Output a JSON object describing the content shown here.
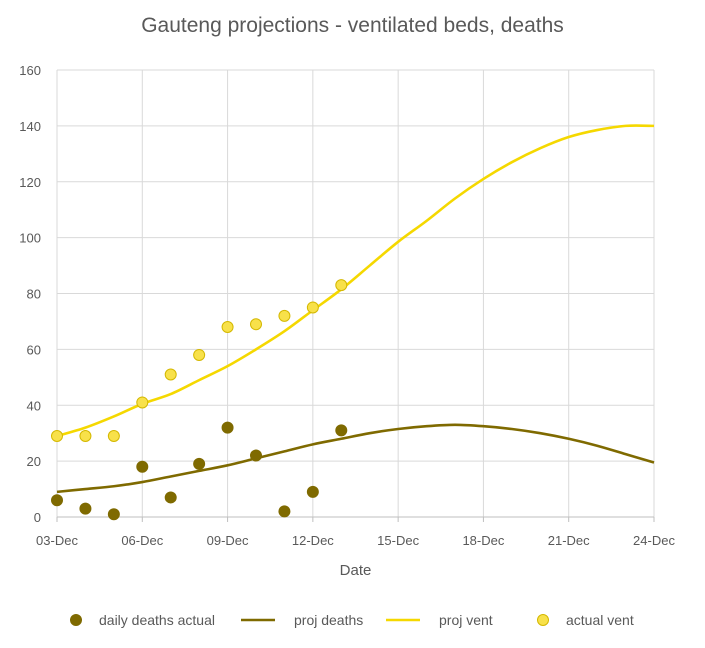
{
  "chart_data": {
    "type": "line",
    "title": "Gauteng projections - ventilated beds, deaths",
    "xlabel": "Date",
    "ylabel": "",
    "x_tick_labels": [
      "03-Dec",
      "06-Dec",
      "09-Dec",
      "12-Dec",
      "15-Dec",
      "18-Dec",
      "21-Dec",
      "24-Dec"
    ],
    "x_tick_days": [
      3,
      6,
      9,
      12,
      15,
      18,
      21,
      24
    ],
    "xlim": [
      3,
      24
    ],
    "ylim": [
      0,
      160
    ],
    "y_ticks": [
      0,
      20,
      40,
      60,
      80,
      100,
      120,
      140,
      160
    ],
    "grid": "vertical and horizontal",
    "legend_position": "bottom",
    "colors": {
      "daily_deaths_actual": "#7f6a00",
      "proj_deaths": "#7f6a00",
      "proj_vent": "#f5d800",
      "actual_vent": "#f8e14a",
      "actual_vent_stroke": "#d4b800",
      "grid": "#d9d9d9",
      "axis": "#bfbfbf"
    },
    "series": [
      {
        "name": "daily deaths actual",
        "kind": "scatter",
        "x": [
          3,
          4,
          5,
          6,
          7,
          8,
          9,
          10,
          11,
          12,
          13
        ],
        "y": [
          6,
          3,
          1,
          18,
          7,
          19,
          32,
          22,
          2,
          9,
          31
        ]
      },
      {
        "name": "proj deaths",
        "kind": "line",
        "x": [
          3,
          4,
          5,
          6,
          7,
          8,
          9,
          10,
          11,
          12,
          13,
          14,
          15,
          16,
          17,
          18,
          19,
          20,
          21,
          22,
          23,
          24
        ],
        "y": [
          9,
          10,
          11,
          12.5,
          14.5,
          16.5,
          18.5,
          21,
          23.5,
          26,
          28,
          30,
          31.5,
          32.5,
          33,
          32.5,
          31.5,
          30,
          28,
          25.5,
          22.5,
          19.5
        ]
      },
      {
        "name": "proj vent",
        "kind": "line",
        "x": [
          3,
          4,
          5,
          6,
          7,
          8,
          9,
          10,
          11,
          12,
          13,
          14,
          15,
          16,
          17,
          18,
          19,
          20,
          21,
          22,
          23,
          24
        ],
        "y": [
          29,
          32,
          36,
          40.5,
          44,
          49,
          54,
          60,
          66.5,
          74,
          81.5,
          90,
          98.5,
          106,
          114,
          121,
          127,
          132,
          136,
          138.5,
          140,
          140
        ]
      },
      {
        "name": "actual vent",
        "kind": "scatter",
        "x": [
          3,
          4,
          5,
          6,
          7,
          8,
          9,
          10,
          11,
          12,
          13
        ],
        "y": [
          29,
          29,
          29,
          41,
          51,
          58,
          68,
          69,
          72,
          75,
          83
        ]
      }
    ]
  }
}
